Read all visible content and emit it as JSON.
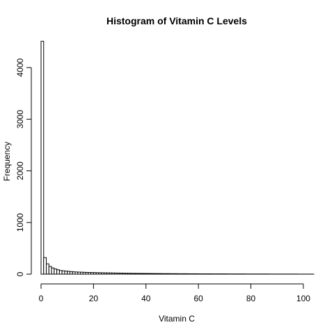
{
  "chart_data": {
    "type": "bar",
    "title": "Histogram of Vitamin C Levels",
    "xlabel": "Vitamin C",
    "ylabel": "Frequency",
    "xlim": [
      0,
      104
    ],
    "ylim": [
      0,
      4500
    ],
    "bin_width": 1,
    "bin_start": 0,
    "x_ticks": [
      0,
      20,
      40,
      60,
      80,
      100
    ],
    "y_ticks": [
      0,
      1000,
      2000,
      3000,
      4000
    ],
    "values": [
      4510,
      320,
      200,
      150,
      120,
      100,
      85,
      70,
      65,
      60,
      55,
      50,
      45,
      42,
      40,
      38,
      36,
      34,
      33,
      32,
      30,
      29,
      28,
      27,
      26,
      25,
      24,
      23,
      22,
      21,
      20,
      19,
      18,
      17,
      16,
      16,
      15,
      15,
      14,
      14,
      13,
      13,
      12,
      12,
      11,
      11,
      10,
      10,
      10,
      9,
      9,
      9,
      8,
      8,
      8,
      8,
      7,
      7,
      7,
      7,
      6,
      6,
      6,
      6,
      6,
      5,
      5,
      5,
      5,
      5,
      5,
      4,
      4,
      4,
      4,
      4,
      4,
      4,
      3,
      3,
      3,
      3,
      3,
      3,
      3,
      3,
      3,
      2,
      2,
      2,
      2,
      2,
      2,
      2,
      2,
      2,
      2,
      2,
      1,
      1,
      1,
      1,
      1,
      1
    ]
  }
}
